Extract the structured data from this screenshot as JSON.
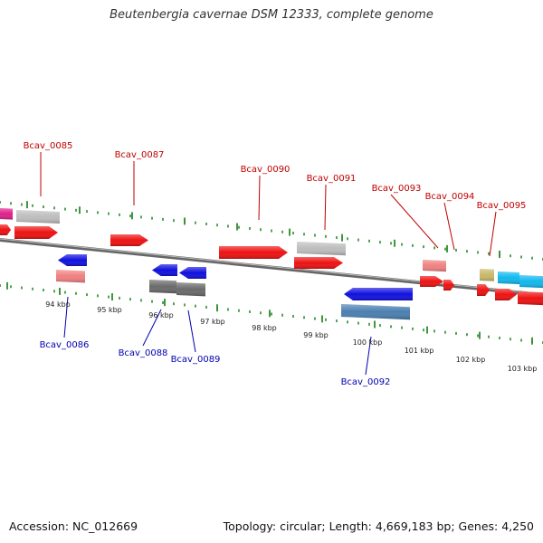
{
  "title": "Beutenbergia cavernae DSM 12333, complete genome",
  "footer": {
    "accession": "Accession: NC_012669",
    "topology": "Topology: circular; Length: 4,669,183 bp; Genes: 4,250"
  },
  "colors": {
    "top_label": "#c00000",
    "bottom_label": "#0000b0",
    "tick": "#2a8a2a",
    "backbone": "#777777"
  },
  "scale_labels": [
    "94 kbp",
    "95 kbp",
    "96 kbp",
    "97 kbp",
    "98 kbp",
    "99 kbp",
    "100 kbp",
    "101 kbp",
    "102 kbp",
    "103 kbp"
  ],
  "top_labels": [
    "Bcav_0085",
    "Bcav_0087",
    "Bcav_0090",
    "Bcav_0091",
    "Bcav_0093",
    "Bcav_0094",
    "Bcav_0095"
  ],
  "bottom_labels": [
    "Bcav_0086",
    "Bcav_0088",
    "Bcav_0089",
    "Bcav_0092"
  ],
  "genes": [
    {
      "id": "pink-top-left",
      "color": "#e0208a",
      "strand": "+"
    },
    {
      "id": "grey-top-0085",
      "color": "#bdbdbd",
      "strand": "+"
    },
    {
      "id": "red-left-edge",
      "color": "#ee1111",
      "strand": "+"
    },
    {
      "id": "red-0085",
      "color": "#ee1111",
      "strand": "+"
    },
    {
      "id": "red-0087",
      "color": "#ee1111",
      "strand": "+"
    },
    {
      "id": "red-0090",
      "color": "#ee1111",
      "strand": "+"
    },
    {
      "id": "grey-0091",
      "color": "#bdbdbd",
      "strand": "+"
    },
    {
      "id": "red-0091",
      "color": "#ee1111",
      "strand": "+"
    },
    {
      "id": "pink-0093",
      "color": "#f08080",
      "strand": "+"
    },
    {
      "id": "red-0093",
      "color": "#ee1111",
      "strand": "+"
    },
    {
      "id": "red-0094",
      "color": "#ee1111",
      "strand": "+"
    },
    {
      "id": "khaki-0095",
      "color": "#c8b868",
      "strand": "+"
    },
    {
      "id": "red-0095",
      "color": "#ee1111",
      "strand": "+"
    },
    {
      "id": "cyan-a",
      "color": "#10b8ee",
      "strand": "+"
    },
    {
      "id": "cyan-b",
      "color": "#10b8ee",
      "strand": "+"
    },
    {
      "id": "red-right-a",
      "color": "#ee1111",
      "strand": "+"
    },
    {
      "id": "red-right-b",
      "color": "#ee1111",
      "strand": "+"
    },
    {
      "id": "blue-0086",
      "color": "#1010e0",
      "strand": "-"
    },
    {
      "id": "pink-0086",
      "color": "#f08080",
      "strand": "-"
    },
    {
      "id": "blue-0088",
      "color": "#1010e0",
      "strand": "-"
    },
    {
      "id": "blue-0089",
      "color": "#1010e0",
      "strand": "-"
    },
    {
      "id": "darkgrey-0088",
      "color": "#6a6a6a",
      "strand": "-"
    },
    {
      "id": "darkgrey-0089",
      "color": "#6a6a6a",
      "strand": "-"
    },
    {
      "id": "blue-0092",
      "color": "#1010e0",
      "strand": "-"
    },
    {
      "id": "steel-0092",
      "color": "#4a7fb0",
      "strand": "-"
    }
  ]
}
